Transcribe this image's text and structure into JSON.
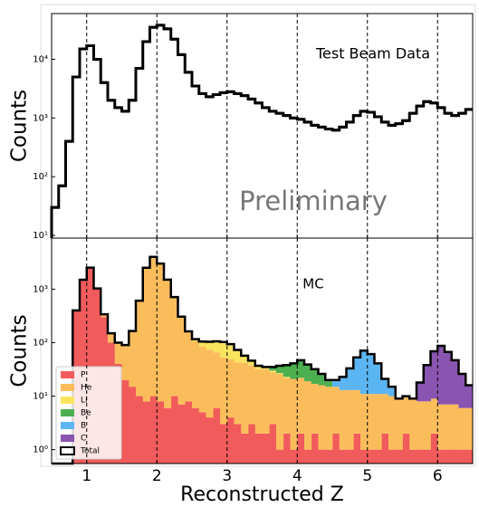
{
  "chart_data": [
    {
      "type": "histogram",
      "ylabel": "Counts",
      "annotations": [
        "Test Beam Data",
        "Preliminary"
      ],
      "bins": [
        0.5,
        0.6,
        0.7,
        0.8,
        0.9,
        1.0,
        1.1,
        1.2,
        1.3,
        1.4,
        1.5,
        1.6,
        1.7,
        1.8,
        1.9,
        2.0,
        2.1,
        2.2,
        2.3,
        2.4,
        2.5,
        2.6,
        2.7,
        2.8,
        2.9,
        3.0,
        3.1,
        3.2,
        3.3,
        3.4,
        3.5,
        3.6,
        3.7,
        3.8,
        3.9,
        4.0,
        4.1,
        4.2,
        4.3,
        4.4,
        4.5,
        4.6,
        4.7,
        4.8,
        4.9,
        5.0,
        5.1,
        5.2,
        5.3,
        5.4,
        5.5,
        5.6,
        5.7,
        5.8,
        5.9,
        6.0,
        6.1,
        6.2,
        6.3,
        6.4,
        6.5
      ],
      "values": [
        30,
        70,
        400,
        5000,
        15000,
        17000,
        10000,
        4000,
        2000,
        1500,
        1300,
        2000,
        7000,
        20000,
        35000,
        38000,
        33000,
        22000,
        12000,
        6000,
        3500,
        2600,
        2300,
        2500,
        2700,
        2800,
        2600,
        2400,
        2100,
        1800,
        1500,
        1300,
        1200,
        1100,
        1000,
        950,
        850,
        750,
        700,
        650,
        620,
        700,
        850,
        1100,
        1300,
        1250,
        1050,
        850,
        750,
        800,
        900,
        1200,
        1600,
        1900,
        1800,
        1500,
        1200,
        1100,
        1200,
        1400
      ],
      "color": "#000000",
      "xlim": [
        0.5,
        6.5
      ],
      "xticks": [
        1,
        2,
        3,
        4,
        5,
        6
      ],
      "ylim": [
        9,
        60000
      ],
      "log_y": true,
      "yticks": [
        {
          "value": 10,
          "label": "10¹"
        },
        {
          "value": 100,
          "label": "10²"
        },
        {
          "value": 1000,
          "label": "10³"
        },
        {
          "value": 10000,
          "label": "10⁴"
        }
      ],
      "grid": "dashed"
    },
    {
      "type": "stacked_histogram",
      "ylabel": "Counts",
      "xlabel": "Reconstructed Z",
      "annotations": [
        "MC"
      ],
      "bins": [
        0.5,
        0.6,
        0.7,
        0.8,
        0.9,
        1.0,
        1.1,
        1.2,
        1.3,
        1.4,
        1.5,
        1.6,
        1.7,
        1.8,
        1.9,
        2.0,
        2.1,
        2.2,
        2.3,
        2.4,
        2.5,
        2.6,
        2.7,
        2.8,
        2.9,
        3.0,
        3.1,
        3.2,
        3.3,
        3.4,
        3.5,
        3.6,
        3.7,
        3.8,
        3.9,
        4.0,
        4.1,
        4.2,
        4.3,
        4.4,
        4.5,
        4.6,
        4.7,
        4.8,
        4.9,
        5.0,
        5.1,
        5.2,
        5.3,
        5.4,
        5.5,
        5.6,
        5.7,
        5.8,
        5.9,
        6.0,
        6.1,
        6.2,
        6.3,
        6.4,
        6.5
      ],
      "series": [
        {
          "name": "P",
          "color": "#f15b5b",
          "values": [
            0,
            0,
            0,
            400,
            1500,
            2500,
            1000,
            300,
            100,
            40,
            20,
            15,
            10,
            8,
            10,
            8,
            6,
            10,
            7,
            8,
            6,
            5,
            4,
            6,
            3,
            4,
            3,
            2,
            3,
            2,
            2,
            3,
            1,
            2,
            1,
            2,
            1,
            2,
            1,
            1,
            2,
            1,
            1,
            2,
            1,
            1,
            1,
            2,
            1,
            1,
            2,
            1,
            1,
            1,
            2,
            1,
            1,
            1,
            1,
            1
          ]
        },
        {
          "name": "He",
          "color": "#fbbd5c",
          "values": [
            0,
            0,
            0,
            0,
            0,
            20,
            30,
            40,
            50,
            60,
            70,
            150,
            600,
            2500,
            4000,
            3000,
            1500,
            700,
            300,
            150,
            100,
            80,
            70,
            60,
            50,
            45,
            40,
            40,
            35,
            30,
            30,
            25,
            25,
            20,
            20,
            20,
            18,
            15,
            15,
            14,
            13,
            12,
            12,
            11,
            10,
            10,
            10,
            9,
            9,
            8,
            8,
            8,
            7,
            7,
            7,
            6,
            6,
            6,
            5,
            5
          ]
        },
        {
          "name": "Li",
          "color": "#f9e45e",
          "values": [
            0,
            0,
            0,
            0,
            0,
            0,
            0,
            0,
            0,
            0,
            0,
            0,
            0,
            0,
            0,
            0,
            0,
            0,
            0,
            5,
            10,
            20,
            30,
            40,
            50,
            45,
            30,
            15,
            8,
            5,
            3,
            2,
            1,
            1,
            0,
            0,
            0,
            0,
            0,
            0,
            0,
            0,
            0,
            0,
            0,
            0,
            0,
            0,
            0,
            0,
            0,
            0,
            0,
            0,
            0,
            0,
            0,
            0,
            0,
            0
          ]
        },
        {
          "name": "Be",
          "color": "#4caf50",
          "values": [
            0,
            0,
            0,
            0,
            0,
            0,
            0,
            0,
            0,
            0,
            0,
            0,
            0,
            0,
            0,
            0,
            0,
            0,
            0,
            0,
            0,
            0,
            0,
            0,
            0,
            0,
            0,
            0,
            0,
            0,
            0,
            5,
            10,
            15,
            20,
            25,
            20,
            15,
            10,
            5,
            0,
            0,
            0,
            0,
            0,
            0,
            0,
            0,
            0,
            0,
            0,
            0,
            0,
            0,
            0,
            0,
            0,
            0,
            0,
            0
          ]
        },
        {
          "name": "B",
          "color": "#5bb5f2",
          "values": [
            0,
            0,
            0,
            0,
            0,
            0,
            0,
            0,
            0,
            0,
            0,
            0,
            0,
            0,
            0,
            0,
            0,
            0,
            0,
            0,
            0,
            0,
            0,
            0,
            0,
            0,
            0,
            0,
            0,
            0,
            0,
            0,
            0,
            0,
            0,
            0,
            0,
            0,
            0,
            0,
            5,
            10,
            20,
            40,
            60,
            50,
            30,
            10,
            5,
            0,
            0,
            0,
            0,
            0,
            0,
            0,
            0,
            0,
            0,
            0
          ]
        },
        {
          "name": "C",
          "color": "#8a55b0",
          "values": [
            0,
            0,
            0,
            0,
            0,
            0,
            0,
            0,
            0,
            0,
            0,
            0,
            0,
            0,
            0,
            0,
            0,
            0,
            0,
            0,
            0,
            0,
            0,
            0,
            0,
            0,
            0,
            0,
            0,
            0,
            0,
            0,
            0,
            0,
            0,
            0,
            0,
            0,
            0,
            0,
            0,
            0,
            0,
            0,
            0,
            0,
            0,
            0,
            0,
            0,
            0,
            0,
            10,
            30,
            60,
            80,
            60,
            40,
            20,
            10
          ]
        }
      ],
      "total_label": "Total",
      "legend": "lower left",
      "xlim": [
        0.5,
        6.5
      ],
      "xticks": [
        1,
        2,
        3,
        4,
        5,
        6
      ],
      "ylim": [
        0.55,
        9000
      ],
      "log_y": true,
      "yticks": [
        {
          "value": 1,
          "label": "10⁰"
        },
        {
          "value": 10,
          "label": "10¹"
        },
        {
          "value": 100,
          "label": "10²"
        },
        {
          "value": 1000,
          "label": "10³"
        }
      ],
      "grid": "dashed"
    }
  ]
}
